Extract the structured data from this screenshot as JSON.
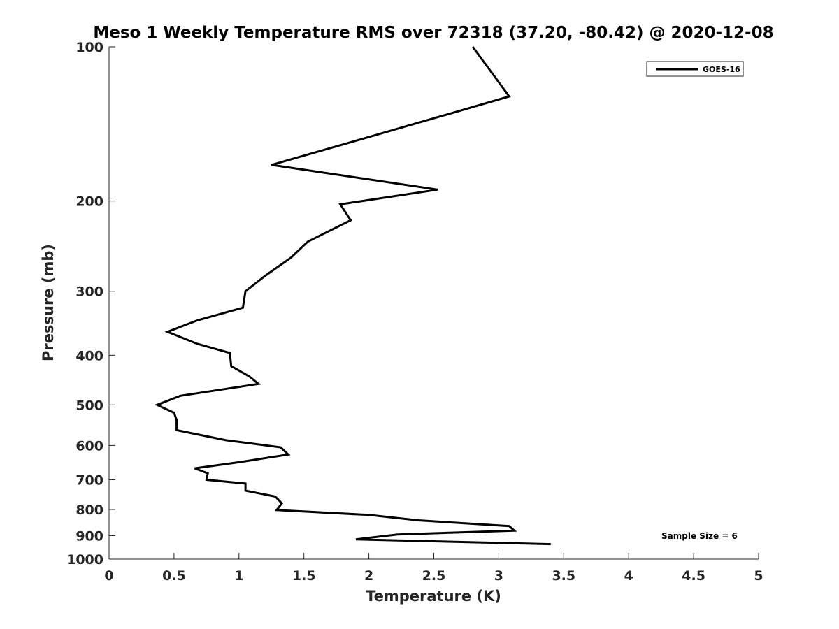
{
  "chart_data": {
    "type": "line",
    "title": "Meso 1 Weekly Temperature RMS over 72318 (37.20, -80.42) @ 2020-12-08",
    "xlabel": "Temperature (K)",
    "ylabel": "Pressure (mb)",
    "xlim": [
      0,
      5
    ],
    "ylim": [
      100,
      1000
    ],
    "yscale": "log",
    "y_reversed": true,
    "xticks": [
      "0",
      "0.5",
      "1",
      "1.5",
      "2",
      "2.5",
      "3",
      "3.5",
      "4",
      "4.5",
      "5"
    ],
    "xtick_values": [
      0,
      0.5,
      1,
      1.5,
      2,
      2.5,
      3,
      3.5,
      4,
      4.5,
      5
    ],
    "yticks": [
      "100",
      "200",
      "300",
      "400",
      "500",
      "600",
      "700",
      "800",
      "900",
      "1000"
    ],
    "ytick_values": [
      100,
      200,
      300,
      400,
      500,
      600,
      700,
      800,
      900,
      1000
    ],
    "grid": false,
    "legend_position": "top-right",
    "series": [
      {
        "name": "GOES-16",
        "color": "#000000",
        "points": [
          [
            2.8,
            100
          ],
          [
            3.08,
            125
          ],
          [
            2.0,
            150
          ],
          [
            1.25,
            170
          ],
          [
            2.53,
            190
          ],
          [
            1.78,
            203
          ],
          [
            1.86,
            218
          ],
          [
            1.53,
            240
          ],
          [
            1.4,
            258
          ],
          [
            1.2,
            280
          ],
          [
            1.05,
            300
          ],
          [
            1.03,
            323
          ],
          [
            0.68,
            342
          ],
          [
            0.45,
            360
          ],
          [
            0.68,
            380
          ],
          [
            0.93,
            396
          ],
          [
            0.94,
            420
          ],
          [
            1.08,
            440
          ],
          [
            1.15,
            455
          ],
          [
            0.55,
            480
          ],
          [
            0.37,
            500
          ],
          [
            0.5,
            518
          ],
          [
            0.52,
            535
          ],
          [
            0.52,
            560
          ],
          [
            0.9,
            586
          ],
          [
            1.32,
            605
          ],
          [
            1.38,
            625
          ],
          [
            1.0,
            647
          ],
          [
            0.66,
            665
          ],
          [
            0.76,
            680
          ],
          [
            0.75,
            700
          ],
          [
            1.05,
            712
          ],
          [
            1.05,
            735
          ],
          [
            1.28,
            755
          ],
          [
            1.33,
            778
          ],
          [
            1.29,
            802
          ],
          [
            2.0,
            820
          ],
          [
            2.38,
            840
          ],
          [
            3.08,
            862
          ],
          [
            3.12,
            880
          ],
          [
            2.22,
            895
          ],
          [
            1.9,
            915
          ],
          [
            3.4,
            935
          ]
        ]
      }
    ],
    "annotation": "Sample Size = 6"
  }
}
